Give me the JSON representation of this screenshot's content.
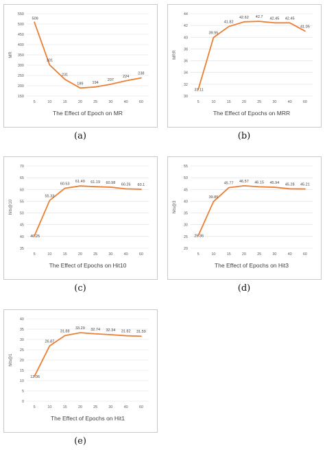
{
  "chart_data": [
    {
      "type": "line",
      "caption": "(a)",
      "title": "The Effect of Epoch on MR",
      "xlabel": "",
      "ylabel": "MR",
      "ylim": [
        150,
        550
      ],
      "yticks": [
        "150",
        "200",
        "250",
        "300",
        "350",
        "400",
        "450",
        "500",
        "550"
      ],
      "categories": [
        "5",
        "10",
        "15",
        "20",
        "25",
        "30",
        "40",
        "60"
      ],
      "values": [
        509,
        301,
        231,
        189,
        194,
        207,
        224,
        238
      ],
      "labels": [
        "509",
        "301",
        "231",
        "189",
        "194",
        "207",
        "224",
        "238"
      ],
      "grid": true,
      "color": "#ed7d31"
    },
    {
      "type": "line",
      "caption": "(b)",
      "title": "The Effect of Epochs on MRR",
      "xlabel": "",
      "ylabel": "MRR",
      "ylim": [
        30,
        44
      ],
      "yticks": [
        "30",
        "32",
        "34",
        "36",
        "38",
        "40",
        "42",
        "44"
      ],
      "categories": [
        "5",
        "10",
        "15",
        "20",
        "25",
        "30",
        "40",
        "60"
      ],
      "values": [
        31.11,
        39.95,
        41.82,
        42.62,
        42.7,
        42.45,
        42.45,
        41.05
      ],
      "labels": [
        "31.11",
        "39.95",
        "41.82",
        "42.62",
        "42.7",
        "42.45",
        "42.45",
        "41.05"
      ],
      "grid": true,
      "color": "#ed7d31"
    },
    {
      "type": "line",
      "caption": "(c)",
      "title": "The Effect of Epochs on Hit10",
      "xlabel": "",
      "ylabel": "hits@10",
      "ylim": [
        35,
        70
      ],
      "yticks": [
        "35",
        "40",
        "45",
        "50",
        "55",
        "60",
        "65",
        "70"
      ],
      "categories": [
        "5",
        "10",
        "15",
        "20",
        "25",
        "30",
        "40",
        "60"
      ],
      "values": [
        40.25,
        55.33,
        60.53,
        61.49,
        61.19,
        60.98,
        60.26,
        60.1
      ],
      "labels": [
        "40.25",
        "55.33",
        "60.53",
        "61.49",
        "61.19",
        "60.98",
        "60.26",
        "60.1"
      ],
      "grid": true,
      "color": "#ed7d31"
    },
    {
      "type": "line",
      "caption": "(d)",
      "title": "The Effect of Epochs on Hit3",
      "xlabel": "",
      "ylabel": "hits@3",
      "ylim": [
        20,
        55
      ],
      "yticks": [
        "20",
        "25",
        "30",
        "35",
        "40",
        "45",
        "50",
        "55"
      ],
      "categories": [
        "5",
        "10",
        "15",
        "20",
        "25",
        "30",
        "40",
        "60"
      ],
      "values": [
        25.36,
        39.85,
        45.77,
        46.57,
        46.15,
        45.94,
        45.28,
        45.21
      ],
      "labels": [
        "25.36",
        "39.85",
        "45.77",
        "46.57",
        "46.15",
        "45.94",
        "45.28",
        "45.21"
      ],
      "grid": true,
      "color": "#ed7d31"
    },
    {
      "type": "line",
      "caption": "(e)",
      "title": "The Effect of Epochs on Hit1",
      "xlabel": "",
      "ylabel": "hits@1",
      "ylim": [
        0,
        40
      ],
      "yticks": [
        "0",
        "5",
        "10",
        "15",
        "20",
        "25",
        "30",
        "35",
        "40"
      ],
      "categories": [
        "5",
        "10",
        "15",
        "20",
        "25",
        "30",
        "40",
        "60"
      ],
      "values": [
        12.06,
        26.87,
        31.88,
        33.29,
        32.74,
        32.34,
        31.82,
        31.59
      ],
      "labels": [
        "12.06",
        "26.87",
        "31.88",
        "33.29",
        "32.74",
        "32.34",
        "31.82",
        "31.59"
      ],
      "grid": true,
      "color": "#ed7d31"
    }
  ]
}
